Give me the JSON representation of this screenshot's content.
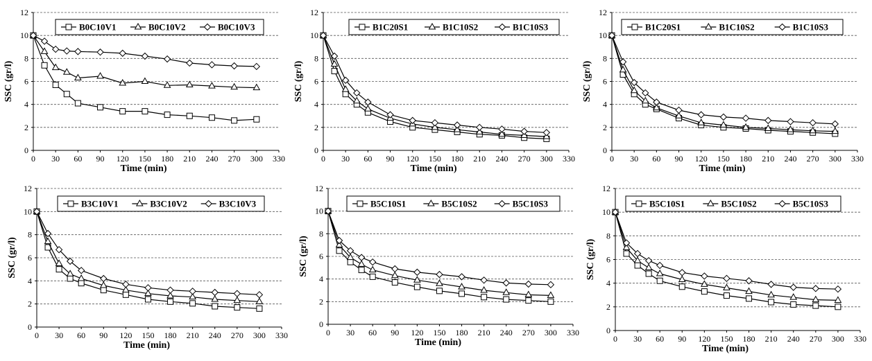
{
  "figure": {
    "y_axis_label": "SSC (gr/l)",
    "x_axis_label": "Time (min)"
  },
  "chart_data": [
    {
      "type": "line",
      "xlabel": "Time (min)",
      "ylabel": "SSC (gr/l)",
      "xlim": [
        0,
        330
      ],
      "ylim": [
        0,
        12
      ],
      "xticks": [
        0,
        30,
        60,
        90,
        120,
        150,
        180,
        210,
        240,
        270,
        300,
        330
      ],
      "yticks": [
        0,
        2,
        4,
        6,
        8,
        10,
        12
      ],
      "grid": "horizontal dashed",
      "legend_position": "top",
      "x": [
        0,
        15,
        30,
        45,
        60,
        90,
        120,
        150,
        180,
        210,
        240,
        270,
        300
      ],
      "series": [
        {
          "name": "B0C10V1",
          "marker": "square",
          "values": [
            10,
            7.4,
            5.7,
            4.9,
            4.1,
            3.75,
            3.4,
            3.4,
            3.1,
            3.0,
            2.85,
            2.6,
            2.7
          ]
        },
        {
          "name": "B0C10V2",
          "marker": "triangle",
          "values": [
            10,
            8.6,
            7.2,
            6.8,
            6.3,
            6.45,
            5.85,
            6.0,
            5.65,
            5.7,
            5.6,
            5.5,
            5.45
          ]
        },
        {
          "name": "B0C10V3",
          "marker": "diamond",
          "values": [
            10,
            9.5,
            8.8,
            8.65,
            8.6,
            8.55,
            8.45,
            8.2,
            7.95,
            7.6,
            7.45,
            7.35,
            7.3
          ]
        }
      ]
    },
    {
      "type": "line",
      "xlabel": "Time (min)",
      "ylabel": "SSC (gr/l)",
      "xlim": [
        0,
        330
      ],
      "ylim": [
        0,
        12
      ],
      "xticks": [
        0,
        30,
        60,
        90,
        120,
        150,
        180,
        210,
        240,
        270,
        300,
        330
      ],
      "yticks": [
        0,
        2,
        4,
        6,
        8,
        10,
        12
      ],
      "grid": "horizontal dashed",
      "legend_position": "top",
      "x": [
        0,
        15,
        30,
        45,
        60,
        90,
        120,
        150,
        180,
        210,
        240,
        270,
        300
      ],
      "series": [
        {
          "name": "B1C20S1",
          "marker": "square",
          "values": [
            10,
            6.9,
            4.9,
            4.0,
            3.3,
            2.5,
            2.0,
            1.8,
            1.6,
            1.4,
            1.3,
            1.1,
            1.0
          ]
        },
        {
          "name": "B1C10S2",
          "marker": "triangle",
          "values": [
            10,
            7.5,
            5.3,
            4.3,
            3.6,
            2.8,
            2.3,
            2.0,
            1.8,
            1.6,
            1.4,
            1.3,
            1.2
          ]
        },
        {
          "name": "B1C10S3",
          "marker": "diamond",
          "values": [
            10,
            8.2,
            6.1,
            5.0,
            4.2,
            3.1,
            2.6,
            2.4,
            2.2,
            2.0,
            1.85,
            1.65,
            1.55
          ]
        }
      ]
    },
    {
      "type": "line",
      "xlabel": "Time (min)",
      "ylabel": "SSC (gr/l)",
      "xlim": [
        0,
        330
      ],
      "ylim": [
        0,
        12
      ],
      "xticks": [
        0,
        30,
        60,
        90,
        120,
        150,
        180,
        210,
        240,
        270,
        300,
        330
      ],
      "yticks": [
        0,
        2,
        4,
        6,
        8,
        10,
        12
      ],
      "grid": "horizontal dashed",
      "legend_position": "top",
      "x": [
        0,
        15,
        30,
        45,
        60,
        90,
        120,
        150,
        180,
        210,
        240,
        270,
        300
      ],
      "series": [
        {
          "name": "B1C20S1",
          "marker": "square",
          "values": [
            10,
            6.6,
            4.9,
            4.0,
            3.6,
            2.8,
            2.2,
            2.0,
            1.9,
            1.75,
            1.65,
            1.55,
            1.45
          ]
        },
        {
          "name": "B1C10S2",
          "marker": "triangle",
          "values": [
            10,
            7.0,
            5.2,
            4.3,
            3.7,
            3.0,
            2.4,
            2.2,
            2.0,
            1.9,
            1.8,
            1.7,
            1.65
          ]
        },
        {
          "name": "B1C10S3",
          "marker": "diamond",
          "values": [
            10,
            7.7,
            5.9,
            5.0,
            4.2,
            3.5,
            3.1,
            2.9,
            2.8,
            2.6,
            2.5,
            2.4,
            2.3
          ]
        }
      ]
    },
    {
      "type": "line",
      "xlabel": "Time (min)",
      "ylabel": "SSC (gr/l)",
      "xlim": [
        0,
        330
      ],
      "ylim": [
        0,
        12
      ],
      "xticks": [
        0,
        30,
        60,
        90,
        120,
        150,
        180,
        210,
        240,
        270,
        300,
        330
      ],
      "yticks": [
        0,
        2,
        4,
        6,
        8,
        10,
        12
      ],
      "grid": "horizontal dashed",
      "legend_position": "top",
      "x": [
        0,
        15,
        30,
        45,
        60,
        90,
        120,
        150,
        180,
        210,
        240,
        270,
        300
      ],
      "series": [
        {
          "name": "B3C10V1",
          "marker": "square",
          "values": [
            10,
            6.9,
            5.0,
            4.2,
            3.8,
            3.2,
            2.8,
            2.4,
            2.2,
            2.05,
            1.8,
            1.7,
            1.6
          ]
        },
        {
          "name": "B3C10V2",
          "marker": "triangle",
          "values": [
            10,
            7.4,
            5.5,
            4.6,
            4.2,
            3.6,
            3.2,
            2.9,
            2.7,
            2.6,
            2.4,
            2.3,
            2.2
          ]
        },
        {
          "name": "B3C10V3",
          "marker": "diamond",
          "values": [
            10,
            8.1,
            6.7,
            5.7,
            4.9,
            4.2,
            3.7,
            3.4,
            3.2,
            3.1,
            3.0,
            2.9,
            2.8
          ]
        }
      ]
    },
    {
      "type": "line",
      "xlabel": "Time (min)",
      "ylabel": "SSC (gr/l)",
      "xlim": [
        0,
        330
      ],
      "ylim": [
        0,
        12
      ],
      "xticks": [
        0,
        30,
        60,
        90,
        120,
        150,
        180,
        210,
        240,
        270,
        300,
        330
      ],
      "yticks": [
        0,
        2,
        4,
        6,
        8,
        10,
        12
      ],
      "grid": "horizontal dashed",
      "legend_position": "top",
      "x": [
        0,
        15,
        30,
        45,
        60,
        90,
        120,
        150,
        180,
        210,
        240,
        270,
        300
      ],
      "series": [
        {
          "name": "B5C10S1",
          "marker": "square",
          "values": [
            10,
            6.5,
            5.5,
            4.8,
            4.2,
            3.7,
            3.3,
            2.95,
            2.7,
            2.4,
            2.2,
            2.1,
            2.0
          ]
        },
        {
          "name": "B5C10S2",
          "marker": "triangle",
          "values": [
            10,
            7.0,
            5.9,
            5.3,
            4.8,
            4.3,
            3.9,
            3.6,
            3.3,
            3.0,
            2.8,
            2.6,
            2.55
          ]
        },
        {
          "name": "B5C10S3",
          "marker": "diamond",
          "values": [
            10,
            7.4,
            6.5,
            5.9,
            5.5,
            4.9,
            4.6,
            4.4,
            4.2,
            3.9,
            3.65,
            3.55,
            3.5
          ]
        }
      ]
    },
    {
      "type": "line",
      "xlabel": "Time (min)",
      "ylabel": "SSC (gr/l)",
      "xlim": [
        0,
        330
      ],
      "ylim": [
        0,
        12
      ],
      "xticks": [
        0,
        30,
        60,
        90,
        120,
        150,
        180,
        210,
        240,
        270,
        300,
        330
      ],
      "yticks": [
        0,
        2,
        4,
        6,
        8,
        10,
        12
      ],
      "grid": "horizontal dashed",
      "legend_position": "top",
      "x": [
        0,
        15,
        30,
        45,
        60,
        90,
        120,
        150,
        180,
        210,
        240,
        270,
        300
      ],
      "series": [
        {
          "name": "B5C10S1",
          "marker": "square",
          "values": [
            10,
            6.5,
            5.5,
            4.8,
            4.2,
            3.7,
            3.3,
            2.95,
            2.7,
            2.4,
            2.2,
            2.1,
            2.0
          ]
        },
        {
          "name": "B5C10S2",
          "marker": "triangle",
          "values": [
            10,
            7.0,
            5.9,
            5.3,
            4.8,
            4.3,
            3.9,
            3.6,
            3.3,
            3.0,
            2.8,
            2.6,
            2.55
          ]
        },
        {
          "name": "B5C10S3",
          "marker": "diamond",
          "values": [
            10,
            7.4,
            6.5,
            5.9,
            5.5,
            4.9,
            4.6,
            4.4,
            4.2,
            3.9,
            3.65,
            3.55,
            3.5
          ]
        }
      ]
    }
  ]
}
